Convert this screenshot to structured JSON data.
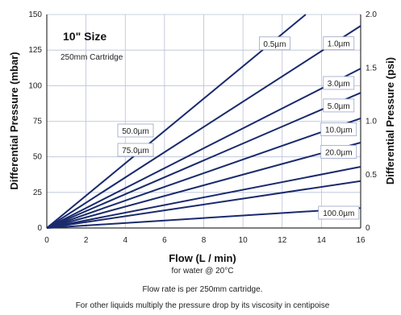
{
  "chart_data": {
    "type": "line",
    "title": "10\" Size",
    "subtitle": "250mm Cartridge",
    "xlabel": "Flow (L / min)",
    "xlabel_note": "for water @ 20°C",
    "ylabel": "Differential Pressure (mbar)",
    "y2label": "Differential Pressure (psi)",
    "xlim": [
      0,
      16
    ],
    "ylim": [
      0,
      150
    ],
    "y2lim": [
      0,
      2.0
    ],
    "xticks": [
      "0",
      "2",
      "4",
      "6",
      "8",
      "10",
      "12",
      "14",
      "16"
    ],
    "yticks": [
      "0",
      "25",
      "50",
      "75",
      "100",
      "125",
      "150"
    ],
    "y2ticks": [
      "0",
      "0.5",
      "1.0",
      "1.5",
      "2.0"
    ],
    "grid": true,
    "line_color": "#1a2a6c",
    "grid_color": "#b8c0d8",
    "series": [
      {
        "name": "0.5µm",
        "x": [
          0,
          13.2
        ],
        "y": [
          0,
          150
        ]
      },
      {
        "name": "1.0µm",
        "x": [
          0,
          16
        ],
        "y": [
          0,
          142
        ]
      },
      {
        "name": "3.0µm",
        "x": [
          0,
          16
        ],
        "y": [
          0,
          112
        ]
      },
      {
        "name": "5.0µm",
        "x": [
          0,
          16
        ],
        "y": [
          0,
          95
        ]
      },
      {
        "name": "10.0µm",
        "x": [
          0,
          16
        ],
        "y": [
          0,
          77
        ]
      },
      {
        "name": "20.0µm",
        "x": [
          0,
          16
        ],
        "y": [
          0,
          60
        ]
      },
      {
        "name": "50.0µm",
        "x": [
          0,
          16
        ],
        "y": [
          0,
          43
        ]
      },
      {
        "name": "75.0µm",
        "x": [
          0,
          16
        ],
        "y": [
          0,
          33
        ]
      },
      {
        "name": "100.0µm",
        "x": [
          0,
          16
        ],
        "y": [
          0,
          14
        ]
      }
    ]
  },
  "footer": {
    "line1": "Flow rate is per 250mm cartridge.",
    "line2": "For other liquids multiply the pressure drop by its viscosity in centipoise"
  }
}
